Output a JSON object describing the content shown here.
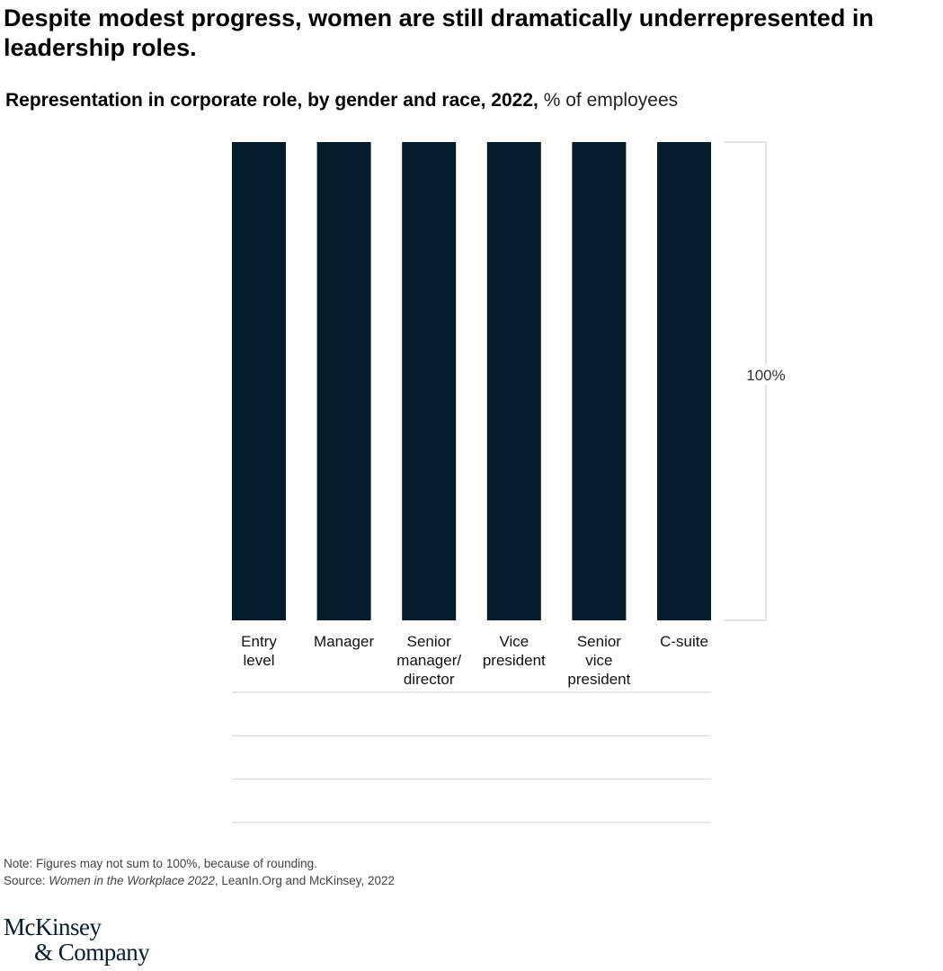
{
  "headline": "Despite modest progress, women are still dramatically underrepresented in leadership roles.",
  "subtitle": {
    "bold": "Representation in corporate role, by gender and race, 2022,",
    "unit": " % of employees"
  },
  "chart_data": {
    "type": "bar",
    "categories": [
      [
        "Entry",
        "level"
      ],
      [
        "Manager"
      ],
      [
        "Senior",
        "manager/",
        "director"
      ],
      [
        "Vice",
        "president"
      ],
      [
        "Senior",
        "vice",
        "president"
      ],
      [
        "C-suite"
      ]
    ],
    "values": [
      100,
      100,
      100,
      100,
      100,
      100
    ],
    "ylim": [
      0,
      100
    ],
    "bracket_label": "100%",
    "bar_color": "#051c2c",
    "row_lines": 4,
    "legend": "none"
  },
  "footer": {
    "note": "Note: Figures may not sum to 100%, because of rounding.",
    "source_prefix": "Source: ",
    "source_title": "Women in the Workplace 2022",
    "source_suffix": ", LeanIn.Org and McKinsey, 2022"
  },
  "logo": {
    "line1": "McKinsey",
    "line2": "& Company"
  }
}
